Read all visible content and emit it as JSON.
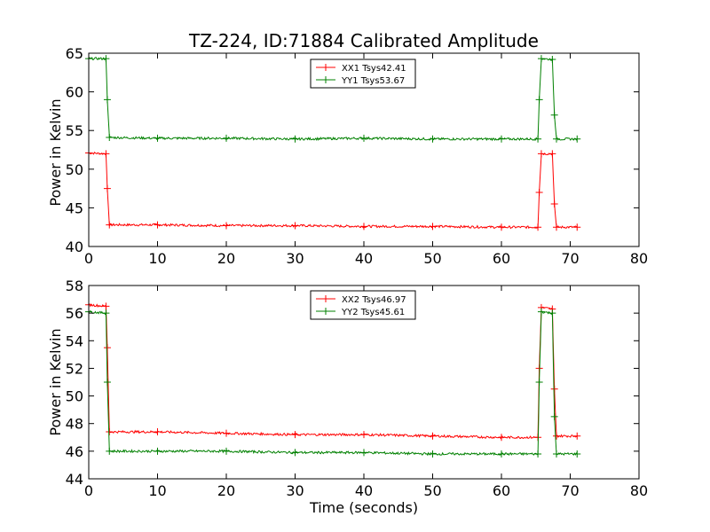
{
  "chart_data": [
    {
      "type": "line",
      "title": "TZ-224, ID:71884 Calibrated Amplitude",
      "xlabel": "",
      "ylabel": "Power in Kelvin",
      "xlim": [
        0,
        80
      ],
      "ylim": [
        40,
        65
      ],
      "x_ticks": [
        "0",
        "10",
        "20",
        "30",
        "40",
        "50",
        "60",
        "70",
        "80"
      ],
      "y_ticks": [
        "40",
        "45",
        "50",
        "55",
        "60",
        "65"
      ],
      "legend": "top-center",
      "series": [
        {
          "name": "XX1 Tsys42.41",
          "color": "#ff0000",
          "x": [
            0,
            2.5,
            2.7,
            3.0,
            10,
            20,
            30,
            40,
            50,
            60,
            65.3,
            65.5,
            65.8,
            67.4,
            67.7,
            68.0,
            71.0
          ],
          "y": [
            52.1,
            52.0,
            47.5,
            42.8,
            42.8,
            42.7,
            42.7,
            42.6,
            42.6,
            42.5,
            42.5,
            47.0,
            52.0,
            52.0,
            45.5,
            42.5,
            42.5
          ]
        },
        {
          "name": "YY1 Tsys53.67",
          "color": "#008000",
          "x": [
            0,
            2.5,
            2.7,
            3.0,
            10,
            20,
            30,
            40,
            50,
            60,
            65.3,
            65.5,
            65.8,
            67.4,
            67.7,
            68.0,
            71.0
          ],
          "y": [
            64.3,
            64.3,
            59.0,
            54.1,
            54.0,
            54.0,
            53.9,
            54.0,
            53.9,
            53.9,
            53.9,
            59.0,
            64.3,
            64.2,
            57.0,
            53.9,
            53.9
          ]
        }
      ]
    },
    {
      "type": "line",
      "title": "",
      "xlabel": "Time (seconds)",
      "ylabel": "Power in Kelvin",
      "xlim": [
        0,
        80
      ],
      "ylim": [
        44,
        58
      ],
      "x_ticks": [
        "0",
        "10",
        "20",
        "30",
        "40",
        "50",
        "60",
        "70",
        "80"
      ],
      "y_ticks": [
        "44",
        "46",
        "48",
        "50",
        "52",
        "54",
        "56",
        "58"
      ],
      "legend": "top-center",
      "series": [
        {
          "name": "XX2 Tsys46.97",
          "color": "#ff0000",
          "x": [
            0,
            2.5,
            2.7,
            3.0,
            10,
            20,
            30,
            40,
            50,
            60,
            65.3,
            65.5,
            65.8,
            67.4,
            67.7,
            68.0,
            71.0
          ],
          "y": [
            56.6,
            56.5,
            53.5,
            47.4,
            47.4,
            47.3,
            47.2,
            47.2,
            47.1,
            47.0,
            47.0,
            52.0,
            56.4,
            56.3,
            50.5,
            47.1,
            47.1
          ]
        },
        {
          "name": "YY2 Tsys45.61",
          "color": "#008000",
          "x": [
            0,
            2.5,
            2.7,
            3.0,
            10,
            20,
            30,
            40,
            50,
            60,
            65.3,
            65.5,
            65.8,
            67.4,
            67.7,
            68.0,
            71.0
          ],
          "y": [
            56.1,
            56.0,
            51.0,
            46.0,
            46.0,
            46.0,
            45.9,
            45.9,
            45.8,
            45.8,
            45.8,
            51.0,
            56.1,
            56.0,
            48.5,
            45.8,
            45.8
          ]
        }
      ]
    }
  ]
}
